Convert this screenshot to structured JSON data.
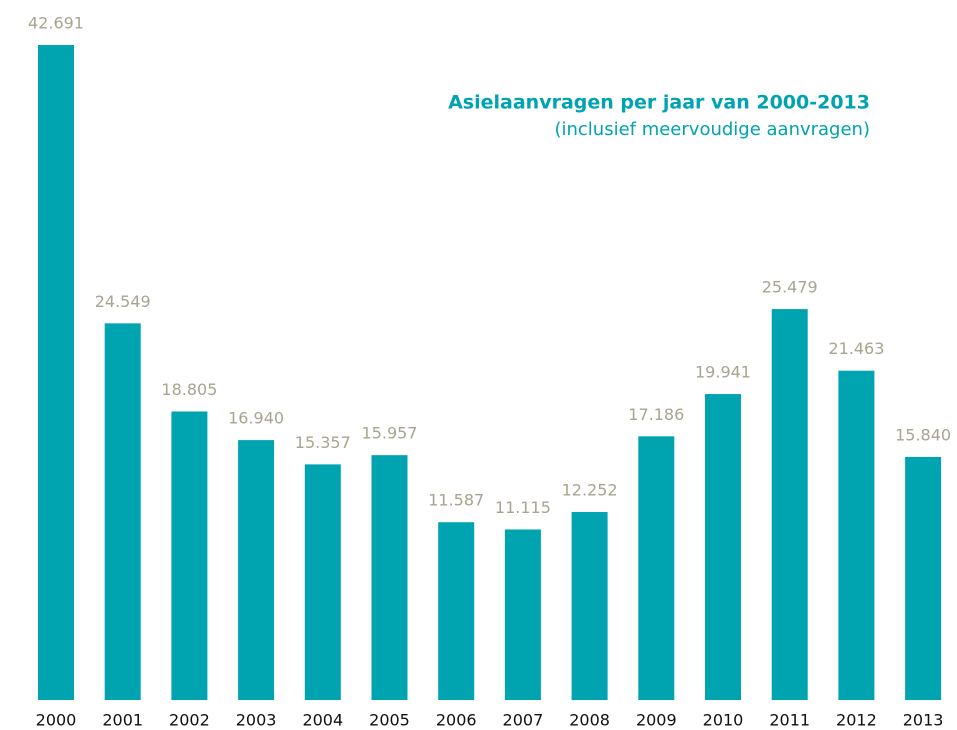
{
  "chart_data": {
    "type": "bar",
    "title": "Asielaanvragen per jaar van 2000-2013",
    "subtitle": "(inclusief meervoudige aanvragen)",
    "categories": [
      "2000",
      "2001",
      "2002",
      "2003",
      "2004",
      "2005",
      "2006",
      "2007",
      "2008",
      "2009",
      "2010",
      "2011",
      "2012",
      "2013"
    ],
    "values": [
      42691,
      24549,
      18805,
      16940,
      15357,
      15957,
      11587,
      11115,
      12252,
      17186,
      19941,
      25479,
      21463,
      15840
    ],
    "value_labels": [
      "42.691",
      "24.549",
      "18.805",
      "16.940",
      "15.357",
      "15.957",
      "11.587",
      "11.115",
      "12.252",
      "17.186",
      "19.941",
      "25.479",
      "21.463",
      "15.840"
    ],
    "color": "#00a3b0"
  }
}
